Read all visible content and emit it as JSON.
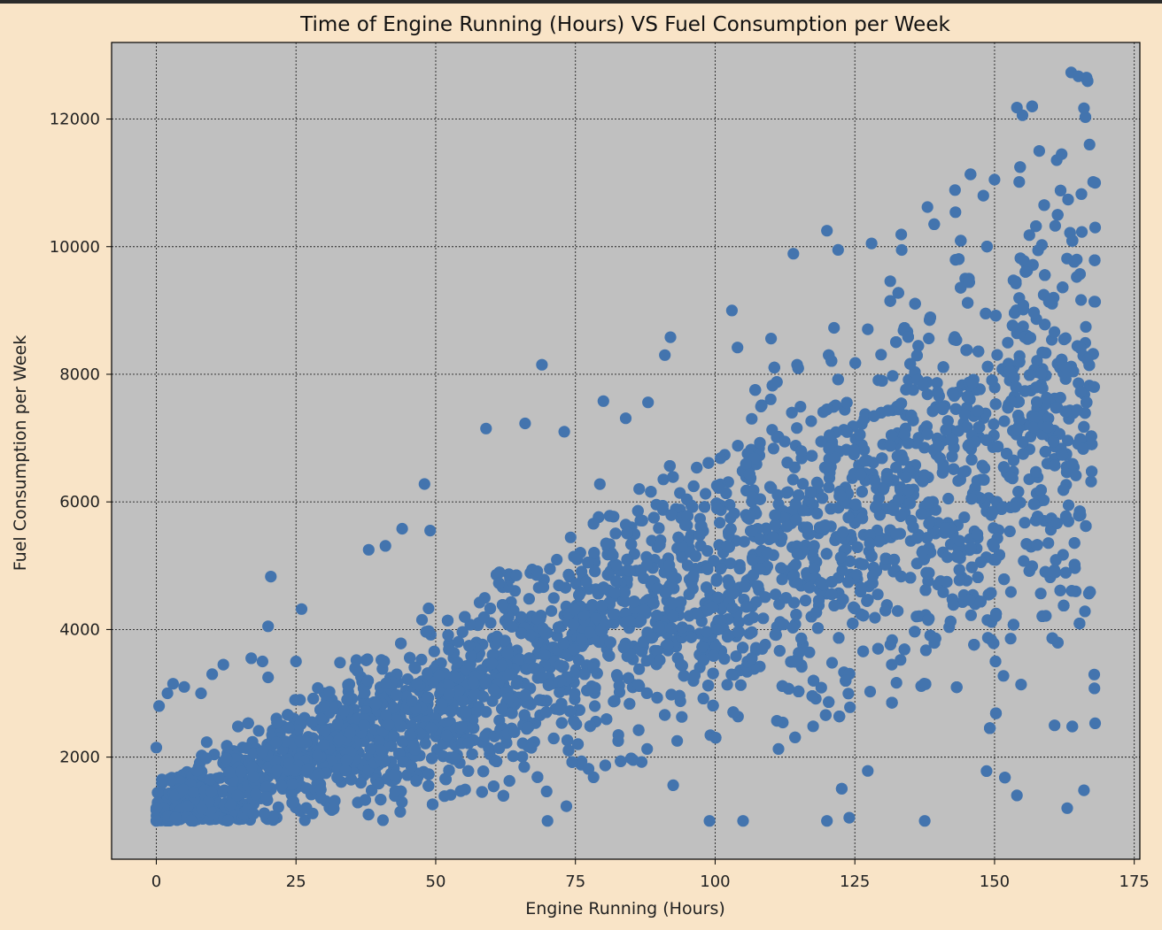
{
  "chart_data": {
    "type": "scatter",
    "title": "Time of Engine Running (Hours) VS Fuel Consumption per Week",
    "xlabel": "Engine Running (Hours)",
    "ylabel": "Fuel Consumption per Week",
    "xlim": [
      -8,
      176
    ],
    "ylim": [
      400,
      13200
    ],
    "xticks": [
      0,
      25,
      50,
      75,
      100,
      125,
      150,
      175
    ],
    "xtick_labels": [
      "0",
      "25",
      "50",
      "75",
      "100",
      "125",
      "150",
      "175"
    ],
    "yticks": [
      2000,
      4000,
      6000,
      8000,
      10000,
      12000
    ],
    "ytick_labels": [
      "2000",
      "4000",
      "6000",
      "8000",
      "10000",
      "12000"
    ],
    "grid": true,
    "grid_style": "dotted",
    "colors": {
      "figure_bg": "#f9e4c7",
      "plot_bg": "#c0c0c0",
      "point": "#4374ae",
      "grid": "#222222"
    },
    "approx_point_count": 5000,
    "series": [
      {
        "points": [
          [
            0,
            1000
          ],
          [
            0,
            1200
          ],
          [
            0,
            2150
          ],
          [
            0.5,
            2800
          ],
          [
            1,
            1650
          ],
          [
            2,
            3000
          ],
          [
            3,
            3150
          ],
          [
            5,
            3100
          ],
          [
            8,
            3000
          ],
          [
            10,
            3300
          ],
          [
            12,
            3450
          ],
          [
            17,
            3550
          ],
          [
            19,
            3500
          ],
          [
            20,
            3250
          ],
          [
            20,
            4050
          ],
          [
            20.5,
            4830
          ],
          [
            25,
            3500
          ],
          [
            26,
            4320
          ],
          [
            38,
            5250
          ],
          [
            41,
            5310
          ],
          [
            44,
            5580
          ],
          [
            48,
            6280
          ],
          [
            49,
            5550
          ],
          [
            59,
            7150
          ],
          [
            66,
            7230
          ],
          [
            69,
            8150
          ],
          [
            73,
            7100
          ],
          [
            80,
            7580
          ],
          [
            84,
            7310
          ],
          [
            88,
            7560
          ],
          [
            91,
            8300
          ],
          [
            92,
            8580
          ],
          [
            103,
            9000
          ],
          [
            104,
            8420
          ],
          [
            110,
            8560
          ],
          [
            114,
            9890
          ],
          [
            120,
            10250
          ],
          [
            122,
            9950
          ],
          [
            128,
            10050
          ],
          [
            138,
            10620
          ],
          [
            143,
            10540
          ],
          [
            148,
            10800
          ],
          [
            150,
            11050
          ],
          [
            154,
            12180
          ],
          [
            155,
            12060
          ],
          [
            158,
            11500
          ],
          [
            162,
            11450
          ],
          [
            165,
            12670
          ],
          [
            166,
            12170
          ],
          [
            167,
            11600
          ],
          [
            168,
            11000
          ],
          [
            168,
            10300
          ],
          [
            120,
            1000
          ],
          [
            124,
            1050
          ],
          [
            137.5,
            1000
          ],
          [
            154,
            1400
          ],
          [
            163,
            1200
          ],
          [
            166,
            1480
          ],
          [
            168,
            2530
          ],
          [
            99,
            1000
          ],
          [
            105,
            1000
          ],
          [
            70,
            1000
          ]
        ]
      }
    ]
  }
}
